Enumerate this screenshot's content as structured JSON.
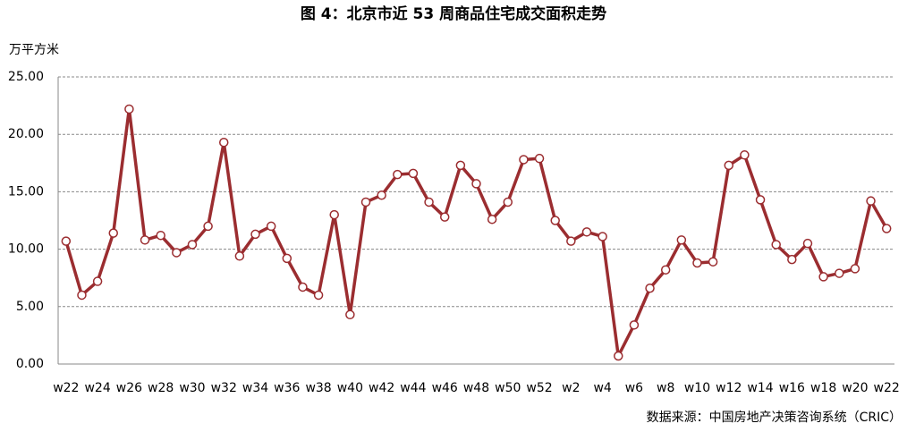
{
  "chart_data": {
    "type": "line",
    "title": "图 4：北京市近 53 周商品住宅成交面积走势",
    "y_label": "万平方米",
    "source": "数据来源：中国房地产决策咨询系统（CRIC）",
    "categories": [
      "w22",
      null,
      "w24",
      null,
      "w26",
      null,
      "w28",
      null,
      "w30",
      null,
      "w32",
      null,
      "w34",
      null,
      "w36",
      null,
      "w38",
      null,
      "w40",
      null,
      "w42",
      null,
      "w44",
      null,
      "w46",
      null,
      "w48",
      null,
      "w50",
      null,
      "w52",
      null,
      "w2",
      null,
      "w4",
      null,
      "w6",
      null,
      "w8",
      null,
      "w10",
      null,
      "w12",
      null,
      "w14",
      null,
      "w16",
      null,
      "w18",
      null,
      "w20",
      null,
      "w22"
    ],
    "values": [
      10.7,
      6.0,
      7.2,
      11.4,
      22.2,
      10.8,
      11.2,
      9.7,
      10.4,
      12.0,
      19.3,
      9.4,
      11.3,
      12.0,
      9.2,
      6.7,
      6.0,
      13.0,
      4.3,
      14.1,
      14.7,
      16.5,
      16.6,
      14.1,
      12.8,
      17.3,
      15.7,
      12.6,
      14.1,
      17.8,
      17.9,
      12.5,
      10.7,
      11.5,
      11.1,
      0.7,
      3.4,
      6.6,
      8.2,
      10.8,
      8.8,
      8.9,
      17.3,
      18.2,
      14.3,
      10.4,
      9.1,
      10.5,
      7.6,
      7.9,
      8.3,
      14.2,
      11.8
    ],
    "color": "#9b2d30",
    "ylim": [
      0,
      25
    ],
    "yticks": [
      {
        "value": 0,
        "label": "0.00"
      },
      {
        "value": 5,
        "label": "5.00"
      },
      {
        "value": 10,
        "label": "10.00"
      },
      {
        "value": 15,
        "label": "15.00"
      },
      {
        "value": 20,
        "label": "20.00"
      },
      {
        "value": 25,
        "label": "25.00"
      }
    ],
    "grid": true
  }
}
